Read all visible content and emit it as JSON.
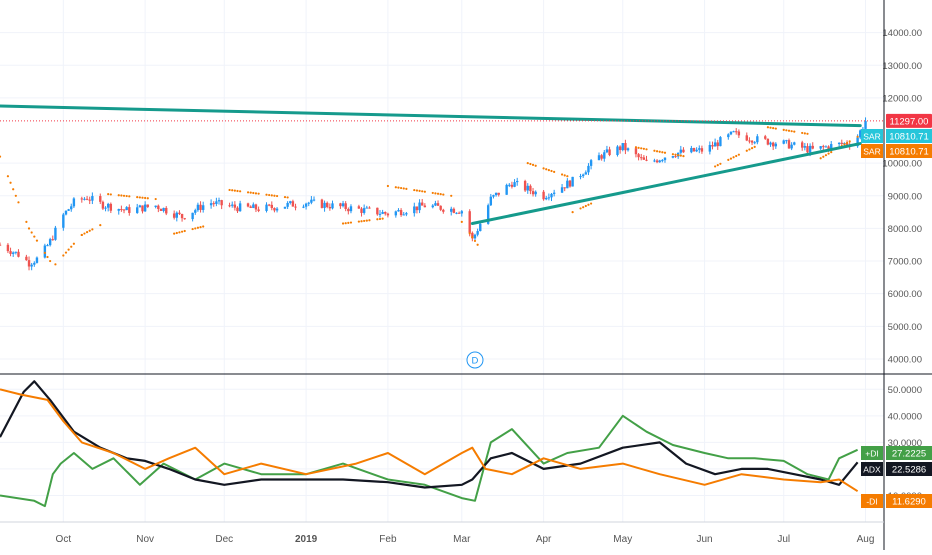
{
  "chart_data": [
    {
      "type": "candlestick",
      "title": "",
      "price_axis": {
        "ticks": [
          "14000.00",
          "13000.00",
          "12000.00",
          "10000.00",
          "9000.00",
          "8000.00",
          "7000.00",
          "6000.00",
          "5000.00",
          "4000.00"
        ],
        "ylim": [
          3600,
          15000
        ]
      },
      "x_axis": {
        "ticks": [
          "Oct",
          "Nov",
          "Dec",
          "2019",
          "Feb",
          "Mar",
          "Apr",
          "May",
          "Jun",
          "Jul",
          "Aug"
        ],
        "range": [
          "2018-09-07",
          "2019-08-08"
        ]
      },
      "last_price": {
        "label": "11297.00",
        "value": 11297,
        "color": "#f23645"
      },
      "sar_labels": [
        {
          "tag": "SAR",
          "value": "10810.71",
          "color": "#26c6da"
        },
        {
          "tag": "SAR",
          "value": "10810.71",
          "color": "#f57c00"
        }
      ],
      "price_path": [
        [
          "2018-09-07",
          7500
        ],
        [
          "2018-09-14",
          7200
        ],
        [
          "2018-09-18",
          6950
        ],
        [
          "2018-09-22",
          7100
        ],
        [
          "2018-09-26",
          7600
        ],
        [
          "2018-10-01",
          8400
        ],
        [
          "2018-10-05",
          8800
        ],
        [
          "2018-10-10",
          8950
        ],
        [
          "2018-10-15",
          8750
        ],
        [
          "2018-10-25",
          8550
        ],
        [
          "2018-11-05",
          8700
        ],
        [
          "2018-11-15",
          8350
        ],
        [
          "2018-11-25",
          8800
        ],
        [
          "2018-12-05",
          8650
        ],
        [
          "2018-12-15",
          8600
        ],
        [
          "2019-01-01",
          8800
        ],
        [
          "2019-01-15",
          8650
        ],
        [
          "2019-02-01",
          8450
        ],
        [
          "2019-02-15",
          8700
        ],
        [
          "2019-03-01",
          8550
        ],
        [
          "2019-03-05",
          7650
        ],
        [
          "2019-03-08",
          8150
        ],
        [
          "2019-03-12",
          8900
        ],
        [
          "2019-03-20",
          9400
        ],
        [
          "2019-04-01",
          9000
        ],
        [
          "2019-04-12",
          9450
        ],
        [
          "2019-04-22",
          10200
        ],
        [
          "2019-05-01",
          10500
        ],
        [
          "2019-05-10",
          10000
        ],
        [
          "2019-05-20",
          10300
        ],
        [
          "2019-06-01",
          10400
        ],
        [
          "2019-06-12",
          10900
        ],
        [
          "2019-06-22",
          10700
        ],
        [
          "2019-07-01",
          10600
        ],
        [
          "2019-07-12",
          10400
        ],
        [
          "2019-07-20",
          10550
        ],
        [
          "2019-07-28",
          10650
        ],
        [
          "2019-08-01",
          11297
        ]
      ],
      "parabolic_sar": [
        {
          "color": "#f57c00",
          "points": [
            [
              "2018-09-07",
              10200
            ],
            [
              "2018-09-18",
              8000
            ],
            [
              "2018-09-26",
              7000
            ]
          ]
        },
        {
          "color": "#f57c00",
          "points": [
            [
              "2018-09-28",
              6900
            ],
            [
              "2018-10-08",
              7800
            ],
            [
              "2018-10-15",
              8100
            ]
          ]
        },
        {
          "color": "#f57c00",
          "points": [
            [
              "2018-10-18",
              9050
            ],
            [
              "2018-11-05",
              8900
            ]
          ]
        },
        {
          "color": "#f57c00",
          "points": [
            [
              "2018-11-10",
              7800
            ],
            [
              "2018-11-25",
              8100
            ]
          ]
        },
        {
          "color": "#f57c00",
          "points": [
            [
              "2018-12-01",
              9200
            ],
            [
              "2018-12-25",
              8950
            ]
          ]
        },
        {
          "color": "#f57c00",
          "points": [
            [
              "2019-01-15",
              8150
            ],
            [
              "2019-01-30",
              8300
            ]
          ]
        },
        {
          "color": "#f57c00",
          "points": [
            [
              "2019-02-01",
              9300
            ],
            [
              "2019-02-25",
              9000
            ]
          ]
        },
        {
          "color": "#f57c00",
          "points": [
            [
              "2019-03-01",
              8200
            ],
            [
              "2019-03-07",
              7500
            ]
          ]
        },
        {
          "color": "#f57c00",
          "points": [
            [
              "2019-03-26",
              10000
            ],
            [
              "2019-04-10",
              9600
            ]
          ]
        },
        {
          "color": "#f57c00",
          "points": [
            [
              "2019-04-12",
              8500
            ],
            [
              "2019-04-20",
              8800
            ]
          ]
        },
        {
          "color": "#f57c00",
          "points": [
            [
              "2019-05-05",
              10500
            ],
            [
              "2019-05-25",
              10200
            ]
          ]
        },
        {
          "color": "#f57c00",
          "points": [
            [
              "2019-06-05",
              9900
            ],
            [
              "2019-06-20",
              10500
            ]
          ]
        },
        {
          "color": "#f57c00",
          "points": [
            [
              "2019-06-25",
              11100
            ],
            [
              "2019-07-10",
              10900
            ]
          ]
        },
        {
          "color": "#f57c00",
          "points": [
            [
              "2019-07-15",
              10150
            ],
            [
              "2019-07-29",
              10810.71
            ]
          ]
        }
      ],
      "trendlines": [
        {
          "color": "#159a8c",
          "from": [
            "2018-09-07",
            11750
          ],
          "to": [
            "2019-07-30",
            11150
          ]
        },
        {
          "color": "#159a8c",
          "from": [
            "2019-03-05",
            8150
          ],
          "to": [
            "2019-07-30",
            10600
          ]
        }
      ],
      "marker": {
        "text": "D",
        "date": "2019-03-06"
      }
    },
    {
      "type": "line",
      "indicator": "DMI",
      "y_axis": {
        "ticks": [
          "50.0000",
          "40.0000",
          "30.0000",
          "20.0000",
          "10.0000"
        ],
        "ylim": [
          0,
          55
        ]
      },
      "series": [
        {
          "name": "+DI",
          "color": "#43a047",
          "value_label": "27.2225",
          "points": [
            [
              "2018-09-07",
              10
            ],
            [
              "2018-09-20",
              8
            ],
            [
              "2018-09-24",
              6
            ],
            [
              "2018-09-27",
              18
            ],
            [
              "2018-09-30",
              22
            ],
            [
              "2018-10-05",
              26
            ],
            [
              "2018-10-12",
              20
            ],
            [
              "2018-10-20",
              24
            ],
            [
              "2018-10-30",
              14
            ],
            [
              "2018-11-08",
              22
            ],
            [
              "2018-11-20",
              16
            ],
            [
              "2018-12-01",
              22
            ],
            [
              "2018-12-15",
              18
            ],
            [
              "2019-01-01",
              18
            ],
            [
              "2019-01-15",
              22
            ],
            [
              "2019-02-01",
              16
            ],
            [
              "2019-02-15",
              14
            ],
            [
              "2019-03-01",
              9
            ],
            [
              "2019-03-06",
              8
            ],
            [
              "2019-03-12",
              30
            ],
            [
              "2019-03-20",
              35
            ],
            [
              "2019-04-01",
              22
            ],
            [
              "2019-04-10",
              26
            ],
            [
              "2019-04-22",
              28
            ],
            [
              "2019-05-01",
              40
            ],
            [
              "2019-05-10",
              34
            ],
            [
              "2019-05-20",
              29
            ],
            [
              "2019-06-01",
              26
            ],
            [
              "2019-06-10",
              24
            ],
            [
              "2019-06-20",
              24
            ],
            [
              "2019-07-01",
              23
            ],
            [
              "2019-07-10",
              18
            ],
            [
              "2019-07-18",
              16
            ],
            [
              "2019-07-22",
              24
            ],
            [
              "2019-07-29",
              27.2
            ]
          ]
        },
        {
          "name": "ADX",
          "color": "#131722",
          "value_label": "22.5286",
          "points": [
            [
              "2018-09-07",
              32
            ],
            [
              "2018-09-16",
              49
            ],
            [
              "2018-09-20",
              53
            ],
            [
              "2018-09-26",
              46
            ],
            [
              "2018-10-05",
              34
            ],
            [
              "2018-10-15",
              28
            ],
            [
              "2018-10-25",
              24
            ],
            [
              "2018-11-01",
              23
            ],
            [
              "2018-11-10",
              20
            ],
            [
              "2018-11-20",
              16
            ],
            [
              "2018-12-01",
              14
            ],
            [
              "2018-12-15",
              16
            ],
            [
              "2019-01-01",
              16
            ],
            [
              "2019-01-15",
              16
            ],
            [
              "2019-02-01",
              15
            ],
            [
              "2019-02-15",
              13
            ],
            [
              "2019-03-01",
              14
            ],
            [
              "2019-03-05",
              16
            ],
            [
              "2019-03-12",
              24
            ],
            [
              "2019-03-20",
              26
            ],
            [
              "2019-04-01",
              20
            ],
            [
              "2019-04-15",
              22
            ],
            [
              "2019-05-01",
              28
            ],
            [
              "2019-05-15",
              30
            ],
            [
              "2019-05-25",
              22
            ],
            [
              "2019-06-05",
              18
            ],
            [
              "2019-06-15",
              20
            ],
            [
              "2019-06-25",
              20
            ],
            [
              "2019-07-05",
              18
            ],
            [
              "2019-07-15",
              16
            ],
            [
              "2019-07-22",
              14
            ],
            [
              "2019-07-29",
              22.5
            ]
          ]
        },
        {
          "name": "-DI",
          "color": "#f57c00",
          "value_label": "11.6290",
          "points": [
            [
              "2018-09-07",
              50
            ],
            [
              "2018-09-15",
              48
            ],
            [
              "2018-09-25",
              46
            ],
            [
              "2018-10-01",
              38
            ],
            [
              "2018-10-08",
              30
            ],
            [
              "2018-10-20",
              26
            ],
            [
              "2018-11-01",
              20
            ],
            [
              "2018-11-10",
              24
            ],
            [
              "2018-11-20",
              28
            ],
            [
              "2018-12-01",
              18
            ],
            [
              "2018-12-15",
              22
            ],
            [
              "2019-01-01",
              18
            ],
            [
              "2019-01-20",
              22
            ],
            [
              "2019-02-01",
              26
            ],
            [
              "2019-02-15",
              18
            ],
            [
              "2019-03-01",
              26
            ],
            [
              "2019-03-05",
              28
            ],
            [
              "2019-03-10",
              20
            ],
            [
              "2019-03-20",
              18
            ],
            [
              "2019-04-01",
              24
            ],
            [
              "2019-04-15",
              20
            ],
            [
              "2019-05-01",
              22
            ],
            [
              "2019-05-15",
              18
            ],
            [
              "2019-06-01",
              14
            ],
            [
              "2019-06-15",
              18
            ],
            [
              "2019-07-01",
              16
            ],
            [
              "2019-07-15",
              15
            ],
            [
              "2019-07-22",
              16
            ],
            [
              "2019-07-29",
              11.6
            ]
          ]
        }
      ]
    }
  ]
}
